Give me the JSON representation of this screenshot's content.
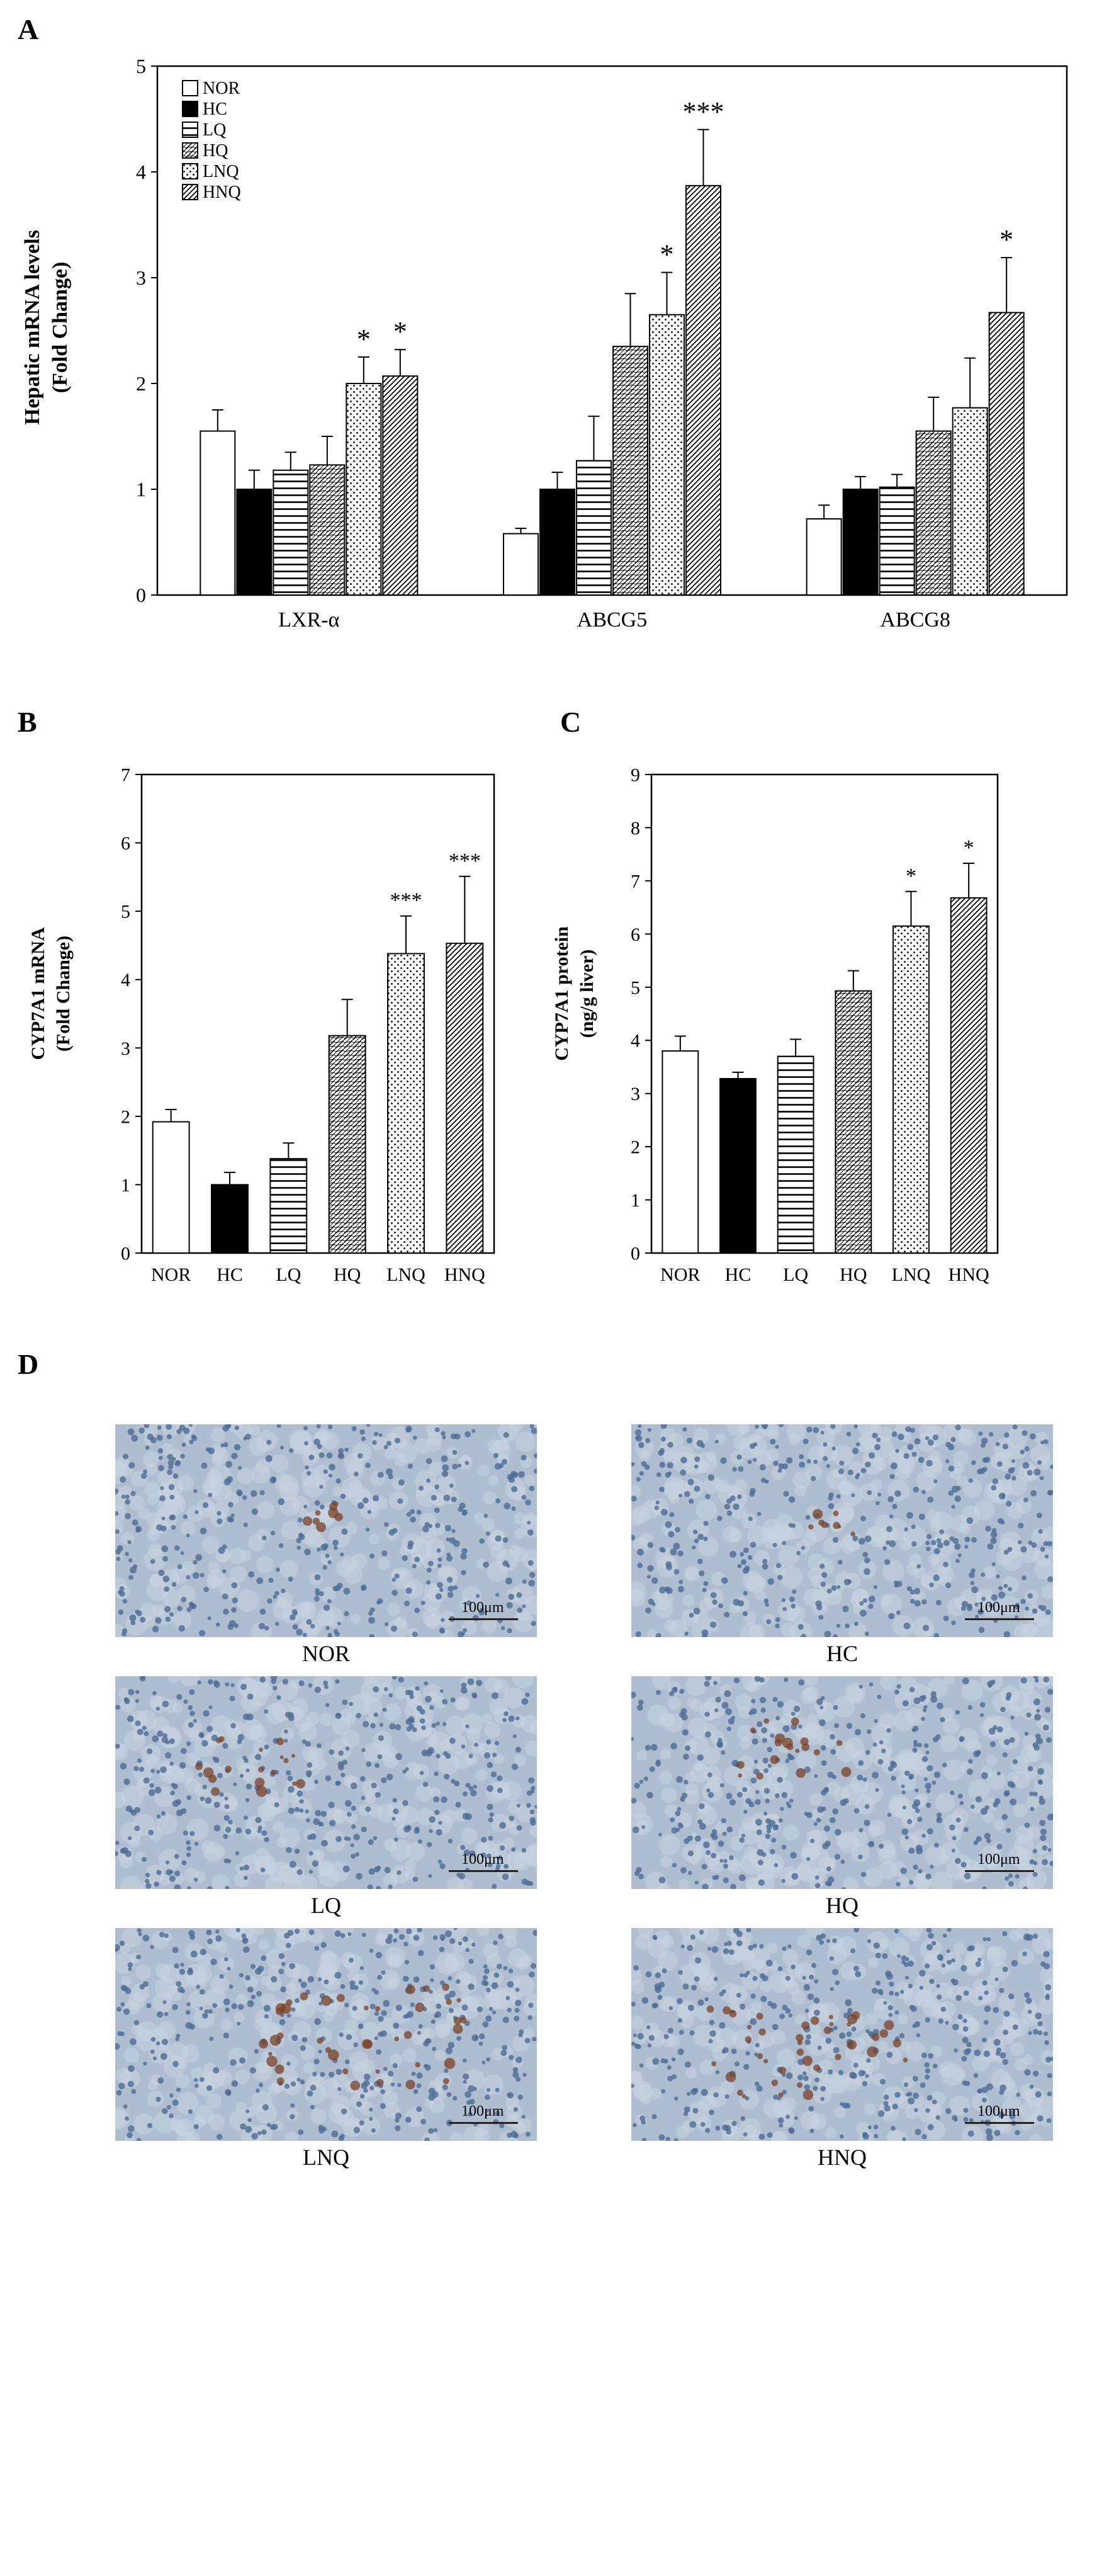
{
  "panels": {
    "a": "A",
    "b": "B",
    "c": "C",
    "d": "D"
  },
  "chart_data": [
    {
      "type": "bar",
      "panel": "A",
      "categories": [
        "LXR-α",
        "ABCG5",
        "ABCG8"
      ],
      "series": [
        {
          "name": "NOR",
          "values": [
            1.55,
            0.58,
            0.72
          ],
          "errors": [
            0.2,
            0.05,
            0.13
          ],
          "sig": [
            "",
            "",
            ""
          ]
        },
        {
          "name": "HC",
          "values": [
            1.0,
            1.0,
            1.0
          ],
          "errors": [
            0.18,
            0.16,
            0.12
          ],
          "sig": [
            "",
            "",
            ""
          ]
        },
        {
          "name": "LQ",
          "values": [
            1.18,
            1.27,
            1.02
          ],
          "errors": [
            0.17,
            0.42,
            0.12
          ],
          "sig": [
            "",
            "",
            ""
          ]
        },
        {
          "name": "HQ",
          "values": [
            1.23,
            2.35,
            1.55
          ],
          "errors": [
            0.27,
            0.5,
            0.32
          ],
          "sig": [
            "",
            "",
            ""
          ]
        },
        {
          "name": "LNQ",
          "values": [
            2.0,
            2.65,
            1.77
          ],
          "errors": [
            0.25,
            0.4,
            0.47
          ],
          "sig": [
            "*",
            "*",
            ""
          ]
        },
        {
          "name": "HNQ",
          "values": [
            2.07,
            3.87,
            2.67
          ],
          "errors": [
            0.25,
            0.53,
            0.52
          ],
          "sig": [
            "*",
            "***",
            "*"
          ]
        }
      ],
      "xlabel": "",
      "ylabel_line1": "Hepatic mRNA levels",
      "ylabel_line2": "(Fold Change)",
      "ylim": [
        0,
        5
      ],
      "yticks": [
        "0",
        "1",
        "2",
        "3",
        "4",
        "5"
      ],
      "legend": "top-left"
    },
    {
      "type": "bar",
      "panel": "B",
      "categories": [
        "NOR",
        "HC",
        "LQ",
        "HQ",
        "LNQ",
        "HNQ"
      ],
      "values": [
        1.92,
        1.0,
        1.38,
        3.18,
        4.38,
        4.53
      ],
      "errors": [
        0.18,
        0.18,
        0.23,
        0.53,
        0.55,
        0.98
      ],
      "sig": [
        "",
        "",
        "",
        "",
        "***",
        "***"
      ],
      "ylabel_line1": "CYP7A1 mRNA",
      "ylabel_line2": "(Fold Change)",
      "ylim": [
        0,
        7
      ],
      "yticks": [
        "0",
        "1",
        "2",
        "3",
        "4",
        "5",
        "6",
        "7"
      ]
    },
    {
      "type": "bar",
      "panel": "C",
      "categories": [
        "NOR",
        "HC",
        "LQ",
        "HQ",
        "LNQ",
        "HNQ"
      ],
      "values": [
        3.8,
        3.28,
        3.7,
        4.93,
        6.15,
        6.68
      ],
      "errors": [
        0.28,
        0.12,
        0.32,
        0.38,
        0.65,
        0.65
      ],
      "sig": [
        "",
        "",
        "",
        "",
        "*",
        "*"
      ],
      "ylabel_line1": "CYP7A1 protein",
      "ylabel_line2": "(ng/g liver)",
      "ylim": [
        0,
        9
      ],
      "yticks": [
        "0",
        "1",
        "2",
        "3",
        "4",
        "5",
        "6",
        "7",
        "8",
        "9"
      ]
    }
  ],
  "micrographs": {
    "scale_label": "100μm",
    "items": [
      {
        "label": "NOR",
        "stain": "light"
      },
      {
        "label": "HC",
        "stain": "light"
      },
      {
        "label": "LQ",
        "stain": "medium"
      },
      {
        "label": "HQ",
        "stain": "medium"
      },
      {
        "label": "LNQ",
        "stain": "strong"
      },
      {
        "label": "HNQ",
        "stain": "strong"
      }
    ]
  },
  "colors": {
    "tissue_base": "#aebdd0",
    "tissue_nuclei": "#4d6b93",
    "stain_brown": "#7a4128"
  }
}
